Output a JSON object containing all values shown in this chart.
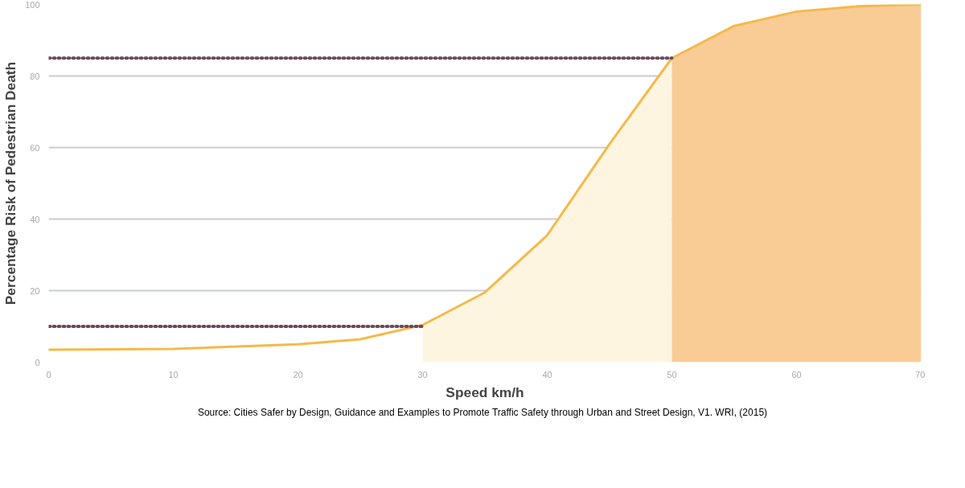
{
  "chart_data": {
    "type": "line",
    "xlabel": "Speed km/h",
    "ylabel": "Percentage Risk of Pedestrian Death",
    "annotations": [
      "Source: Cities Safer by Design, Guidance and Examples to Promote Traffic Safety through Urban and Street Design, V1. WRI, (2015)"
    ],
    "xlim": [
      0,
      70
    ],
    "ylim": [
      0,
      100
    ],
    "xticks": [
      0,
      10,
      20,
      30,
      40,
      50,
      60,
      70
    ],
    "yticks": [
      0,
      20,
      40,
      60,
      80,
      100
    ],
    "grid": "y",
    "series": [
      {
        "type": "area",
        "color": "#fdf5df",
        "x": [
          30,
          35,
          40,
          45,
          50
        ],
        "values": [
          10.4,
          19.5,
          35.5,
          61,
          85
        ]
      },
      {
        "type": "area",
        "color": "#f9cc96",
        "x": [
          50,
          55,
          60,
          65,
          70
        ],
        "values": [
          85,
          94,
          98,
          99.5,
          100
        ]
      },
      {
        "color": "#f5b94a",
        "x": [
          0,
          10,
          20,
          25,
          30,
          35,
          40,
          45,
          50,
          55,
          60,
          65,
          70
        ],
        "values": [
          3.5,
          3.7,
          5,
          6.4,
          10.4,
          19.5,
          35.5,
          61,
          85,
          94,
          98,
          99.5,
          100
        ]
      },
      {
        "color": "#6b4a5a",
        "line_style": "dotted",
        "x": [
          0,
          30
        ],
        "values": [
          10,
          10
        ]
      },
      {
        "color": "#6b4a5a",
        "line_style": "dotted",
        "x": [
          0,
          50
        ],
        "values": [
          85,
          85
        ]
      }
    ]
  }
}
